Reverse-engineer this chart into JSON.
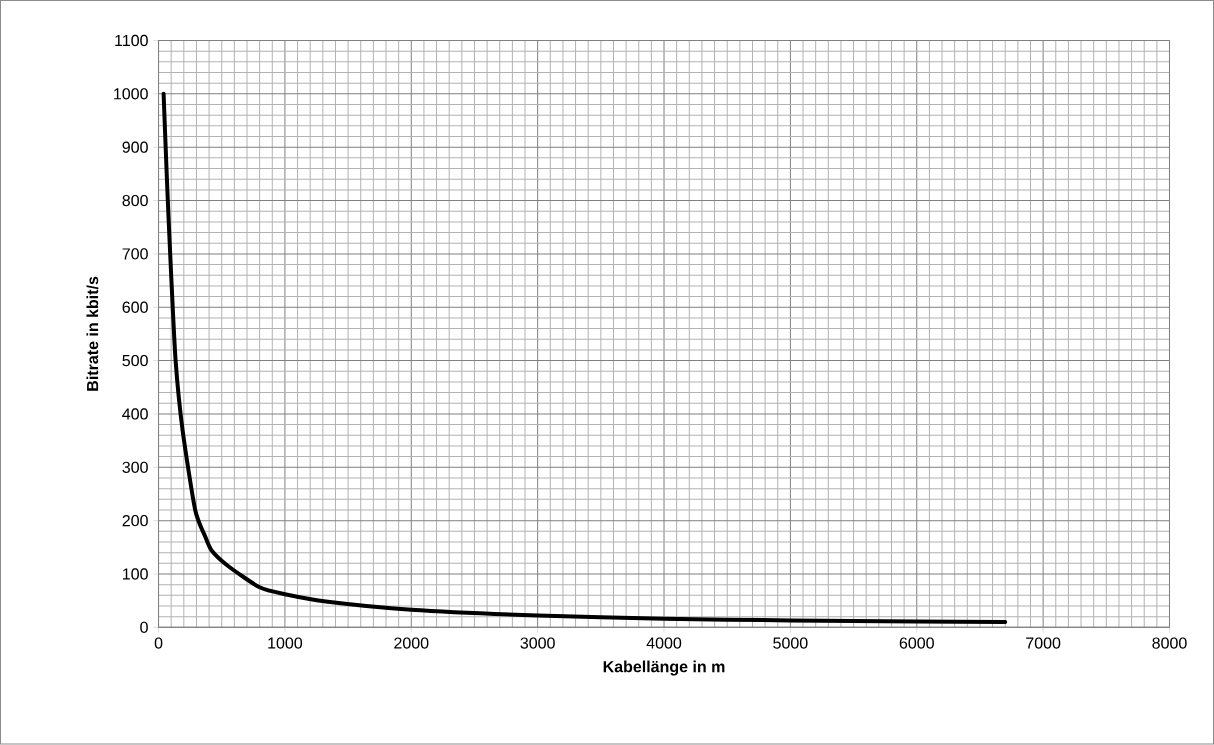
{
  "chart_data": {
    "type": "line",
    "xlabel": "Kabellänge in m",
    "ylabel": "Bitrate in kbit/s",
    "x": [
      40,
      70,
      100,
      135,
      190,
      290,
      370,
      420,
      550,
      800,
      1000,
      1340,
      2000,
      3000,
      4000,
      5000,
      6000,
      6700
    ],
    "series": [
      {
        "color": "#000000",
        "values": [
          1000,
          818,
          660,
          500,
          370,
          220,
          170,
          144,
          115,
          75,
          62,
          48,
          33,
          22,
          16,
          13,
          11,
          10
        ]
      }
    ],
    "xlim": [
      0,
      8000
    ],
    "xticks": [
      0,
      1000,
      2000,
      3000,
      4000,
      5000,
      6000,
      7000,
      8000
    ],
    "ylim": [
      0,
      1100
    ],
    "yticks": [
      0,
      100,
      200,
      300,
      400,
      500,
      600,
      700,
      800,
      900,
      1000,
      1100
    ],
    "grid": true,
    "marker": "none",
    "line_style": "solid"
  }
}
